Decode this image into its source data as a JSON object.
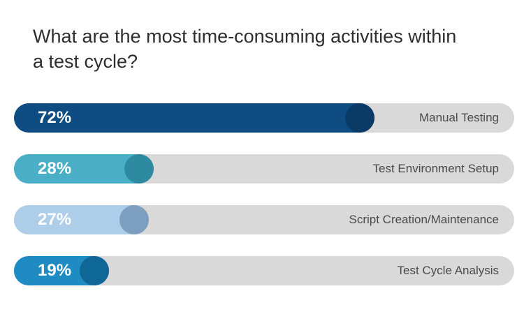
{
  "title": "What are the most time-consuming activities within a test cycle?",
  "chart_data": {
    "type": "bar",
    "orientation": "horizontal",
    "categories": [
      "Manual Testing",
      "Test Environment Setup",
      "Script Creation/Maintenance",
      "Test Cycle Analysis"
    ],
    "values": [
      72,
      28,
      27,
      19
    ],
    "value_labels": [
      "72%",
      "28%",
      "27%",
      "19%"
    ],
    "xlim": [
      0,
      100
    ],
    "colors": {
      "bars": [
        "#0f4c81",
        "#4aafc6",
        "#aecde9",
        "#1e8cc3"
      ],
      "knobs": [
        "#0a3a66",
        "#2e8aa0",
        "#7d9fbf",
        "#0f6797"
      ],
      "track": "#d9d9d9"
    },
    "grid": false,
    "legend": "none"
  }
}
